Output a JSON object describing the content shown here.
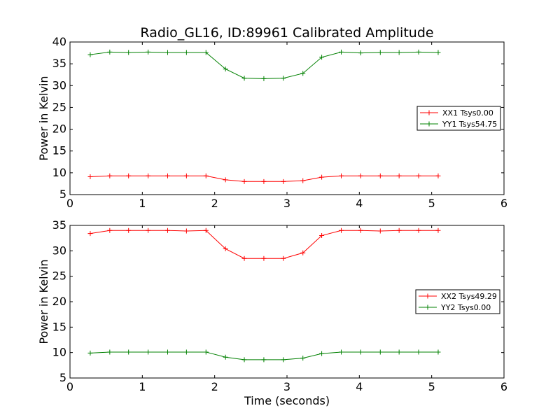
{
  "figure": {
    "title": "Radio_GL16, ID:89961 Calibrated Amplitude",
    "xlabel": "Time (seconds)"
  },
  "chart_data": [
    {
      "type": "line",
      "title": "Radio_GL16, ID:89961 Calibrated Amplitude",
      "xlabel": "",
      "ylabel": "Power in Kelvin",
      "xlim": [
        0,
        6
      ],
      "ylim": [
        5,
        40
      ],
      "xticks": [
        "0",
        "1",
        "2",
        "3",
        "4",
        "5",
        "6"
      ],
      "yticks": [
        "5",
        "10",
        "15",
        "20",
        "25",
        "30",
        "35",
        "40"
      ],
      "x": [
        0.28,
        0.55,
        0.81,
        1.08,
        1.35,
        1.61,
        1.88,
        2.15,
        2.41,
        2.68,
        2.95,
        3.22,
        3.48,
        3.75,
        4.02,
        4.29,
        4.55,
        4.82,
        5.09
      ],
      "legend_position": "right",
      "series": [
        {
          "name": "XX1 Tsys0.00",
          "color": "#ff0000",
          "values": [
            9.1,
            9.3,
            9.3,
            9.3,
            9.3,
            9.3,
            9.3,
            8.4,
            8.0,
            8.0,
            8.0,
            8.2,
            9.0,
            9.3,
            9.3,
            9.3,
            9.3,
            9.3,
            9.3
          ]
        },
        {
          "name": "YY1 Tsys54.75",
          "color": "#008000",
          "values": [
            37.1,
            37.7,
            37.6,
            37.7,
            37.6,
            37.6,
            37.6,
            33.8,
            31.7,
            31.6,
            31.7,
            32.8,
            36.5,
            37.7,
            37.5,
            37.6,
            37.6,
            37.7,
            37.6
          ]
        }
      ]
    },
    {
      "type": "line",
      "title": "",
      "xlabel": "Time (seconds)",
      "ylabel": "Power in Kelvin",
      "xlim": [
        0,
        6
      ],
      "ylim": [
        5,
        35
      ],
      "xticks": [
        "0",
        "1",
        "2",
        "3",
        "4",
        "5",
        "6"
      ],
      "yticks": [
        "5",
        "10",
        "15",
        "20",
        "25",
        "30",
        "35"
      ],
      "x": [
        0.28,
        0.55,
        0.81,
        1.08,
        1.35,
        1.61,
        1.88,
        2.15,
        2.41,
        2.68,
        2.95,
        3.22,
        3.48,
        3.75,
        4.02,
        4.29,
        4.55,
        4.82,
        5.09
      ],
      "legend_position": "right",
      "series": [
        {
          "name": "XX2 Tsys49.29",
          "color": "#ff0000",
          "values": [
            33.4,
            34.0,
            34.0,
            34.0,
            34.0,
            33.9,
            34.0,
            30.4,
            28.5,
            28.5,
            28.5,
            29.6,
            33.0,
            34.0,
            34.0,
            33.9,
            34.0,
            34.0,
            34.0
          ]
        },
        {
          "name": "YY2 Tsys0.00",
          "color": "#008000",
          "values": [
            9.9,
            10.1,
            10.1,
            10.1,
            10.1,
            10.1,
            10.1,
            9.1,
            8.6,
            8.6,
            8.6,
            8.9,
            9.8,
            10.1,
            10.1,
            10.1,
            10.1,
            10.1,
            10.1
          ]
        }
      ]
    }
  ]
}
